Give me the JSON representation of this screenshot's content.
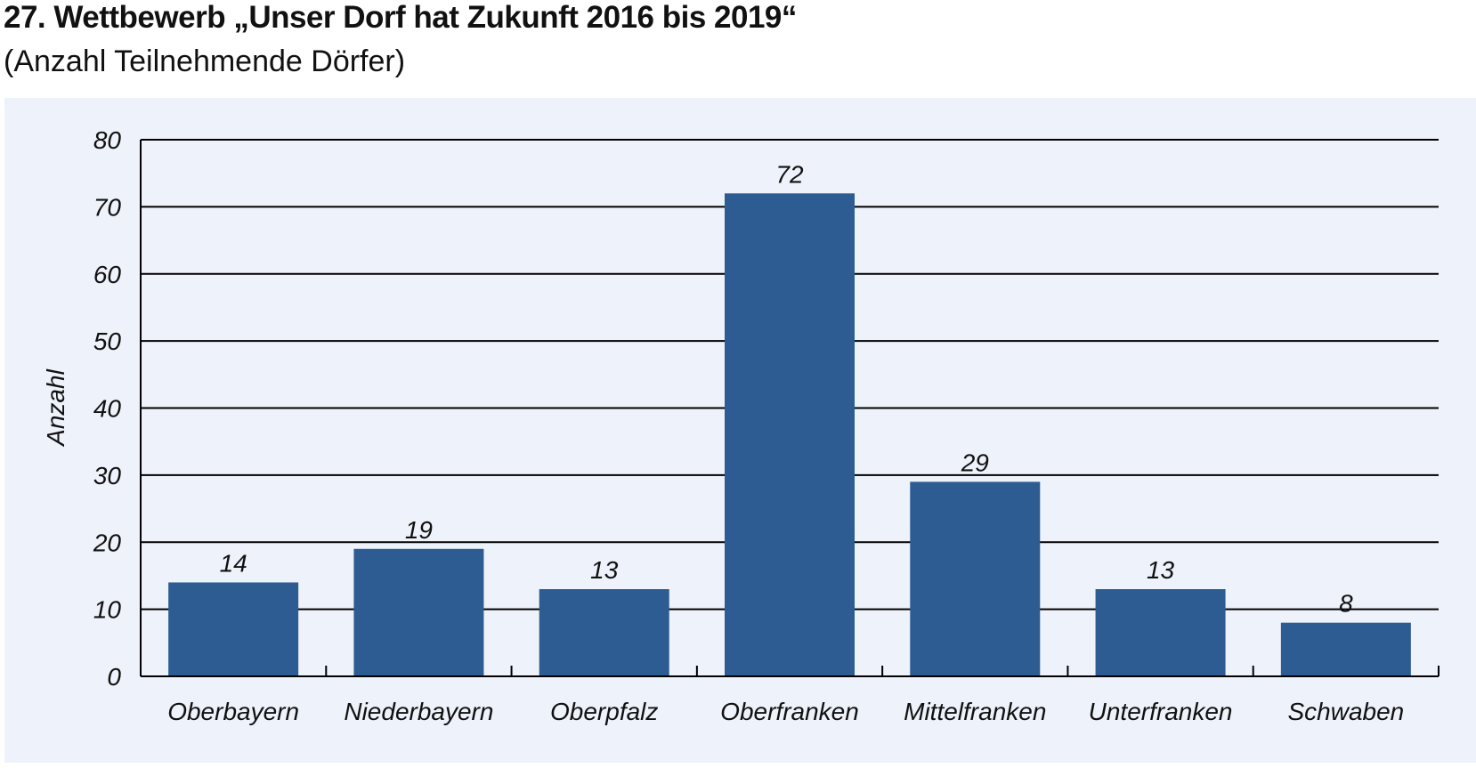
{
  "chart_data": {
    "type": "bar",
    "title": "27. Wettbewerb „Unser Dorf hat Zukunft 2016 bis 2019“",
    "subtitle": "(Anzahl Teilnehmende Dörfer)",
    "ylabel": "Anzahl",
    "xlabel": "",
    "categories": [
      "Oberbayern",
      "Niederbayern",
      "Oberpfalz",
      "Oberfranken",
      "Mittelfranken",
      "Unterfranken",
      "Schwaben"
    ],
    "values": [
      14,
      19,
      13,
      72,
      29,
      13,
      8
    ],
    "value_labels": [
      "14",
      "19",
      "13",
      "72",
      "29",
      "13",
      "8"
    ],
    "ylim": [
      0,
      80
    ],
    "yticks": [
      "0",
      "10",
      "20",
      "30",
      "40",
      "50",
      "60",
      "70",
      "80"
    ],
    "grid": true,
    "colors": {
      "bar": "#2d5c93",
      "background": "#eef2fa",
      "grid": "#000000"
    }
  }
}
